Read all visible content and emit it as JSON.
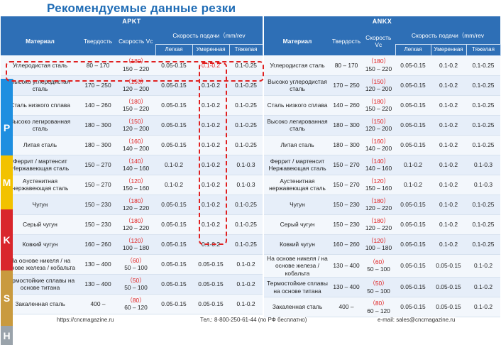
{
  "title": "Рекомендуемые данные резки",
  "colors": {
    "header": "#2e6fb6",
    "title": "#1f6cb5",
    "accent_red": "#e02020",
    "P": "#1e8fe0",
    "M": "#f2c200",
    "K": "#d9262c",
    "S": "#c99a3e",
    "H": "#9aa3ab"
  },
  "left": {
    "brand": "APKT",
    "headers": {
      "material": "Материал",
      "hardness": "Твердость",
      "speed": "Скорость Vc",
      "feed": "Скорость подачи（mm/rev",
      "light": "Легкая",
      "medium": "Умеренная",
      "heavy": "Тяжелая"
    },
    "rows": [
      {
        "mat": "Углеродистая сталь",
        "hard": "80 – 170",
        "sp1": "（180）",
        "sp2": "150 – 220",
        "l": "0.05-0.15",
        "m": "0.1-0.2",
        "h": "0.1-0.25"
      },
      {
        "mat": "Высоко углеродистая сталь",
        "hard": "170 – 250",
        "sp1": "（150）",
        "sp2": "120 – 200",
        "l": "0.05-0.15",
        "m": "0.1-0.2",
        "h": "0.1-0.25"
      },
      {
        "mat": "Сталь низкого сплава",
        "hard": "140 – 260",
        "sp1": "（180）",
        "sp2": "150 – 220",
        "l": "0.05-0.15",
        "m": "0.1-0.2",
        "h": "0.1-0.25"
      },
      {
        "mat": "Высоко легированная сталь",
        "hard": "180 – 300",
        "sp1": "（150）",
        "sp2": "120 – 200",
        "l": "0.05-0.15",
        "m": "0.1-0.2",
        "h": "0.1-0.25"
      },
      {
        "mat": "Литая сталь",
        "hard": "180 – 300",
        "sp1": "（160）",
        "sp2": "140 – 200",
        "l": "0.05-0.15",
        "m": "0.1-0.2",
        "h": "0.1-0.25"
      },
      {
        "mat": "Феррит / мартенсит Нержавеющая сталь",
        "hard": "150 – 270",
        "sp1": "（140）",
        "sp2": "140 – 160",
        "l": "0.1-0.2",
        "m": "0.1-0.2",
        "h": "0.1-0.3"
      },
      {
        "mat": "Аустенитная нержавеющая сталь",
        "hard": "150 – 270",
        "sp1": "（120）",
        "sp2": "150 – 160",
        "l": "0.1-0.2",
        "m": "0.1-0.2",
        "h": "0.1-0.3"
      },
      {
        "mat": "Чугун",
        "hard": "150 – 230",
        "sp1": "（180）",
        "sp2": "120 – 220",
        "l": "0.05-0.15",
        "m": "0.1-0.2",
        "h": "0.1-0.25"
      },
      {
        "mat": "Серый чугун",
        "hard": "150 – 230",
        "sp1": "（180）",
        "sp2": "120 – 220",
        "l": "0.05-0.15",
        "m": "0.1-0.2",
        "h": "0.1-0.25"
      },
      {
        "mat": "Ковкий чугун",
        "hard": "160 – 260",
        "sp1": "（120）",
        "sp2": "100 – 180",
        "l": "0.05-0.15",
        "m": "0.1-0.2",
        "h": "0.1-0.25"
      },
      {
        "mat": "На основе никеля / на основе железа / кобальта",
        "hard": "130 – 400",
        "sp1": "（60）",
        "sp2": "50 – 100",
        "l": "0.05-0.15",
        "m": "0.05-0.15",
        "h": "0.1-0.2"
      },
      {
        "mat": "Термостойкие сплавы на основе титана",
        "hard": "130 – 400",
        "sp1": "（50）",
        "sp2": "50 – 100",
        "l": "0.05-0.15",
        "m": "0.05-0.15",
        "h": "0.1-0.2"
      },
      {
        "mat": "Закаленная сталь",
        "hard": "400 –",
        "sp1": "（80）",
        "sp2": "60 – 120",
        "l": "0.05-0.15",
        "m": "0.05-0.15",
        "h": "0.1-0.2"
      }
    ]
  },
  "right": {
    "brand": "ANKX",
    "headers": {
      "material": "Материал",
      "hardness": "Твердость",
      "speed": "Скорость Vc",
      "feed": "Скорость подачи（mm/rev",
      "light": "Легкая",
      "medium": "Умеренная",
      "heavy": "Тяжелая"
    },
    "rows": [
      {
        "mat": "Углеродистая сталь",
        "hard": "80 – 170",
        "sp1": "（180）",
        "sp2": "150 – 220",
        "l": "0.05-0.15",
        "m": "0.1-0.2",
        "h": "0.1-0.25"
      },
      {
        "mat": "Высоко углеродистая сталь",
        "hard": "170 – 250",
        "sp1": "（150）",
        "sp2": "120 – 200",
        "l": "0.05-0.15",
        "m": "0.1-0.2",
        "h": "0.1-0.25"
      },
      {
        "mat": "Сталь низкого сплава",
        "hard": "140 – 260",
        "sp1": "（180）",
        "sp2": "150 – 220",
        "l": "0.05-0.15",
        "m": "0.1-0.2",
        "h": "0.1-0.25"
      },
      {
        "mat": "Высоко легированная сталь",
        "hard": "180 – 300",
        "sp1": "（150）",
        "sp2": "120 – 200",
        "l": "0.05-0.15",
        "m": "0.1-0.2",
        "h": "0.1-0.25"
      },
      {
        "mat": "Литая сталь",
        "hard": "180 – 300",
        "sp1": "（160）",
        "sp2": "140 – 200",
        "l": "0.05-0.15",
        "m": "0.1-0.2",
        "h": "0.1-0.25"
      },
      {
        "mat": "Феррит / мартенсит Нержавеющая сталь",
        "hard": "150 – 270",
        "sp1": "（140）",
        "sp2": "140 – 160",
        "l": "0.1-0.2",
        "m": "0.1-0.2",
        "h": "0.1-0.3"
      },
      {
        "mat": "Аустенитная нержавеющая сталь",
        "hard": "150 – 270",
        "sp1": "（120）",
        "sp2": "150 – 160",
        "l": "0.1-0.2",
        "m": "0.1-0.2",
        "h": "0.1-0.3"
      },
      {
        "mat": "Чугун",
        "hard": "150 – 230",
        "sp1": "（180）",
        "sp2": "120 – 220",
        "l": "0.05-0.15",
        "m": "0.1-0.2",
        "h": "0.1-0.25"
      },
      {
        "mat": "Серый чугун",
        "hard": "150 – 230",
        "sp1": "（180）",
        "sp2": "120 – 220",
        "l": "0.05-0.15",
        "m": "0.1-0.2",
        "h": "0.1-0.25"
      },
      {
        "mat": "Ковкий чугун",
        "hard": "160 – 260",
        "sp1": "（120）",
        "sp2": "100 – 180",
        "l": "0.05-0.15",
        "m": "0.1-0.2",
        "h": "0.1-0.25"
      },
      {
        "mat": "На основе никеля / на основе железа / кобальта",
        "hard": "130 – 400",
        "sp1": "（60）",
        "sp2": "50 – 100",
        "l": "0.05-0.15",
        "m": "0.05-0.15",
        "h": "0.1-0.2"
      },
      {
        "mat": "Термостойкие сплавы на основе титана",
        "hard": "130 – 400",
        "sp1": "（50）",
        "sp2": "50 – 100",
        "l": "0.05-0.15",
        "m": "0.05-0.15",
        "h": "0.1-0.2"
      },
      {
        "mat": "Закаленная сталь",
        "hard": "400 –",
        "sp1": "（80）",
        "sp2": "60 – 120",
        "l": "0.05-0.15",
        "m": "0.05-0.15",
        "h": "0.1-0.2"
      }
    ]
  },
  "classes": [
    "P",
    "M",
    "K",
    "S",
    "H"
  ],
  "footer": {
    "site": "https://cncmagazine.ru",
    "phone": "Тел.: 8-800-250-61-44 (по РФ бесплатно)",
    "email": "e-mail: sales@cncmagazine.ru"
  }
}
